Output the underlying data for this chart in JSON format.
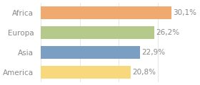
{
  "categories": [
    "Africa",
    "Europa",
    "Asia",
    "America"
  ],
  "values": [
    30.1,
    26.2,
    22.9,
    20.8
  ],
  "labels": [
    "30,1%",
    "26,2%",
    "22,9%",
    "20,8%"
  ],
  "bar_colors": [
    "#f0a96e",
    "#b5c98a",
    "#7b9fc2",
    "#f7d87c"
  ],
  "background_color": "#ffffff",
  "xlim": [
    0,
    36
  ],
  "label_fontsize": 7.5,
  "tick_fontsize": 7.5,
  "text_color": "#888888",
  "grid_color": "#dddddd"
}
